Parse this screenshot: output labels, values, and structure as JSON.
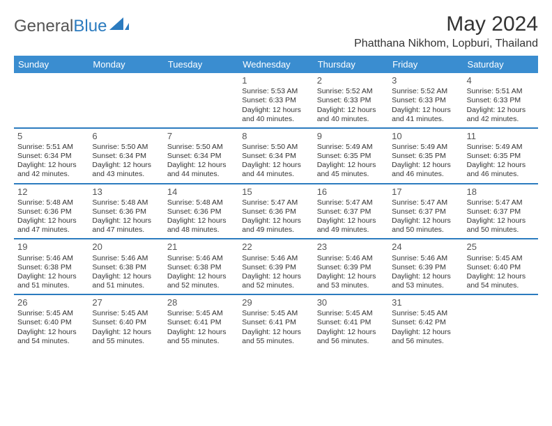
{
  "brand": {
    "part1": "General",
    "part2": "Blue"
  },
  "title": "May 2024",
  "location": "Phatthana Nikhom, Lopburi, Thailand",
  "colors": {
    "headerBg": "#3a8dd0",
    "divider": "#2b7bbf",
    "brandBlue": "#2b7bbf",
    "text": "#333333",
    "bg": "#ffffff"
  },
  "dayNames": [
    "Sunday",
    "Monday",
    "Tuesday",
    "Wednesday",
    "Thursday",
    "Friday",
    "Saturday"
  ],
  "weeks": [
    [
      null,
      null,
      null,
      {
        "n": "1",
        "sr": "5:53 AM",
        "ss": "6:33 PM",
        "dl": "12 hours and 40 minutes."
      },
      {
        "n": "2",
        "sr": "5:52 AM",
        "ss": "6:33 PM",
        "dl": "12 hours and 40 minutes."
      },
      {
        "n": "3",
        "sr": "5:52 AM",
        "ss": "6:33 PM",
        "dl": "12 hours and 41 minutes."
      },
      {
        "n": "4",
        "sr": "5:51 AM",
        "ss": "6:33 PM",
        "dl": "12 hours and 42 minutes."
      }
    ],
    [
      {
        "n": "5",
        "sr": "5:51 AM",
        "ss": "6:34 PM",
        "dl": "12 hours and 42 minutes."
      },
      {
        "n": "6",
        "sr": "5:50 AM",
        "ss": "6:34 PM",
        "dl": "12 hours and 43 minutes."
      },
      {
        "n": "7",
        "sr": "5:50 AM",
        "ss": "6:34 PM",
        "dl": "12 hours and 44 minutes."
      },
      {
        "n": "8",
        "sr": "5:50 AM",
        "ss": "6:34 PM",
        "dl": "12 hours and 44 minutes."
      },
      {
        "n": "9",
        "sr": "5:49 AM",
        "ss": "6:35 PM",
        "dl": "12 hours and 45 minutes."
      },
      {
        "n": "10",
        "sr": "5:49 AM",
        "ss": "6:35 PM",
        "dl": "12 hours and 46 minutes."
      },
      {
        "n": "11",
        "sr": "5:49 AM",
        "ss": "6:35 PM",
        "dl": "12 hours and 46 minutes."
      }
    ],
    [
      {
        "n": "12",
        "sr": "5:48 AM",
        "ss": "6:36 PM",
        "dl": "12 hours and 47 minutes."
      },
      {
        "n": "13",
        "sr": "5:48 AM",
        "ss": "6:36 PM",
        "dl": "12 hours and 47 minutes."
      },
      {
        "n": "14",
        "sr": "5:48 AM",
        "ss": "6:36 PM",
        "dl": "12 hours and 48 minutes."
      },
      {
        "n": "15",
        "sr": "5:47 AM",
        "ss": "6:36 PM",
        "dl": "12 hours and 49 minutes."
      },
      {
        "n": "16",
        "sr": "5:47 AM",
        "ss": "6:37 PM",
        "dl": "12 hours and 49 minutes."
      },
      {
        "n": "17",
        "sr": "5:47 AM",
        "ss": "6:37 PM",
        "dl": "12 hours and 50 minutes."
      },
      {
        "n": "18",
        "sr": "5:47 AM",
        "ss": "6:37 PM",
        "dl": "12 hours and 50 minutes."
      }
    ],
    [
      {
        "n": "19",
        "sr": "5:46 AM",
        "ss": "6:38 PM",
        "dl": "12 hours and 51 minutes."
      },
      {
        "n": "20",
        "sr": "5:46 AM",
        "ss": "6:38 PM",
        "dl": "12 hours and 51 minutes."
      },
      {
        "n": "21",
        "sr": "5:46 AM",
        "ss": "6:38 PM",
        "dl": "12 hours and 52 minutes."
      },
      {
        "n": "22",
        "sr": "5:46 AM",
        "ss": "6:39 PM",
        "dl": "12 hours and 52 minutes."
      },
      {
        "n": "23",
        "sr": "5:46 AM",
        "ss": "6:39 PM",
        "dl": "12 hours and 53 minutes."
      },
      {
        "n": "24",
        "sr": "5:46 AM",
        "ss": "6:39 PM",
        "dl": "12 hours and 53 minutes."
      },
      {
        "n": "25",
        "sr": "5:45 AM",
        "ss": "6:40 PM",
        "dl": "12 hours and 54 minutes."
      }
    ],
    [
      {
        "n": "26",
        "sr": "5:45 AM",
        "ss": "6:40 PM",
        "dl": "12 hours and 54 minutes."
      },
      {
        "n": "27",
        "sr": "5:45 AM",
        "ss": "6:40 PM",
        "dl": "12 hours and 55 minutes."
      },
      {
        "n": "28",
        "sr": "5:45 AM",
        "ss": "6:41 PM",
        "dl": "12 hours and 55 minutes."
      },
      {
        "n": "29",
        "sr": "5:45 AM",
        "ss": "6:41 PM",
        "dl": "12 hours and 55 minutes."
      },
      {
        "n": "30",
        "sr": "5:45 AM",
        "ss": "6:41 PM",
        "dl": "12 hours and 56 minutes."
      },
      {
        "n": "31",
        "sr": "5:45 AM",
        "ss": "6:42 PM",
        "dl": "12 hours and 56 minutes."
      },
      null
    ]
  ],
  "labels": {
    "sunrise": "Sunrise: ",
    "sunset": "Sunset: ",
    "daylight": "Daylight: "
  }
}
